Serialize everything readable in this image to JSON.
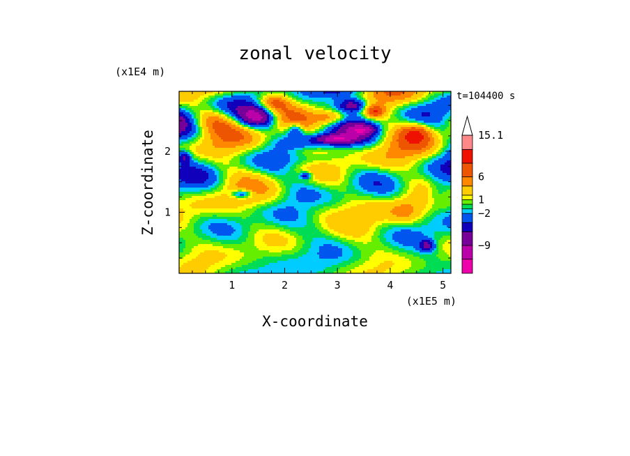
{
  "chart_data": {
    "type": "heatmap",
    "title": "zonal velocity",
    "xlabel": "X-coordinate",
    "ylabel": "Z-coordinate",
    "x_unit": "(x1E5 m)",
    "y_unit": "(x1E4 m)",
    "time_label": "t=104400 s",
    "xlim": [
      0,
      5.15
    ],
    "ylim": [
      0,
      2.98
    ],
    "x_ticks": [
      1,
      2,
      3,
      4,
      5
    ],
    "x_tick_labels": [
      "1",
      "2",
      "3",
      "4",
      "5"
    ],
    "y_ticks": [
      1,
      2
    ],
    "y_tick_labels": [
      "1",
      "2"
    ],
    "colorbar": {
      "levels": [
        -15.1,
        -12,
        -9,
        -6,
        -4,
        -2,
        -1,
        0,
        1,
        2,
        4,
        6,
        9,
        12,
        15.1
      ],
      "colors": [
        "#ee00aa",
        "#bb00aa",
        "#770099",
        "#1100bb",
        "#0055ee",
        "#00ccff",
        "#00dd55",
        "#66ee00",
        "#ffff00",
        "#ffcc00",
        "#ff8800",
        "#ee5500",
        "#ee1100",
        "#ff8888",
        "#ffbbcc"
      ],
      "labels": [
        {
          "value": 15.1,
          "text": "15.1"
        },
        {
          "value": 6,
          "text": "6"
        },
        {
          "value": 1,
          "text": "1"
        },
        {
          "value": -2,
          "text": "−2"
        },
        {
          "value": -9,
          "text": "−9"
        }
      ],
      "extend_top": true
    }
  }
}
